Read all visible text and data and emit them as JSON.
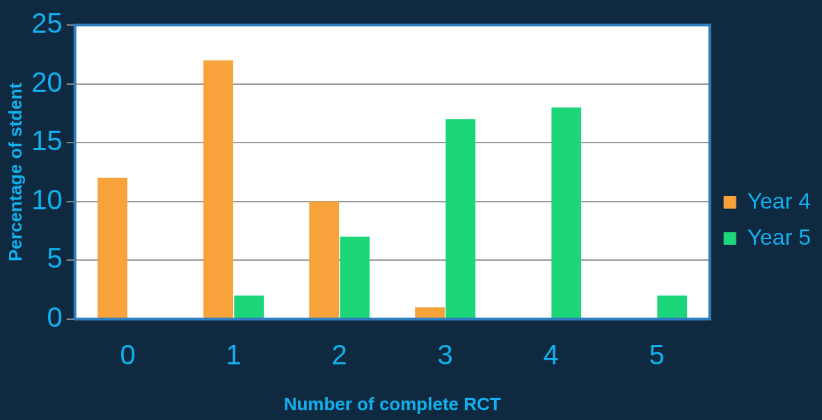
{
  "chart_data": {
    "type": "bar",
    "xlabel": "Number of complete RCT",
    "ylabel": "Percentage of stdent",
    "categories": [
      "0",
      "1",
      "2",
      "3",
      "4",
      "5"
    ],
    "series": [
      {
        "name": "Year 4",
        "color": "#f7a23b",
        "values": [
          12,
          22,
          10,
          1,
          0,
          0
        ]
      },
      {
        "name": "Year 5",
        "color": "#1ed67a",
        "values": [
          0,
          2,
          7,
          17,
          18,
          2
        ]
      }
    ],
    "ylim": [
      0,
      25
    ],
    "yticks": [
      0,
      5,
      10,
      15,
      20,
      25
    ],
    "grid": "y",
    "legend": "right"
  }
}
